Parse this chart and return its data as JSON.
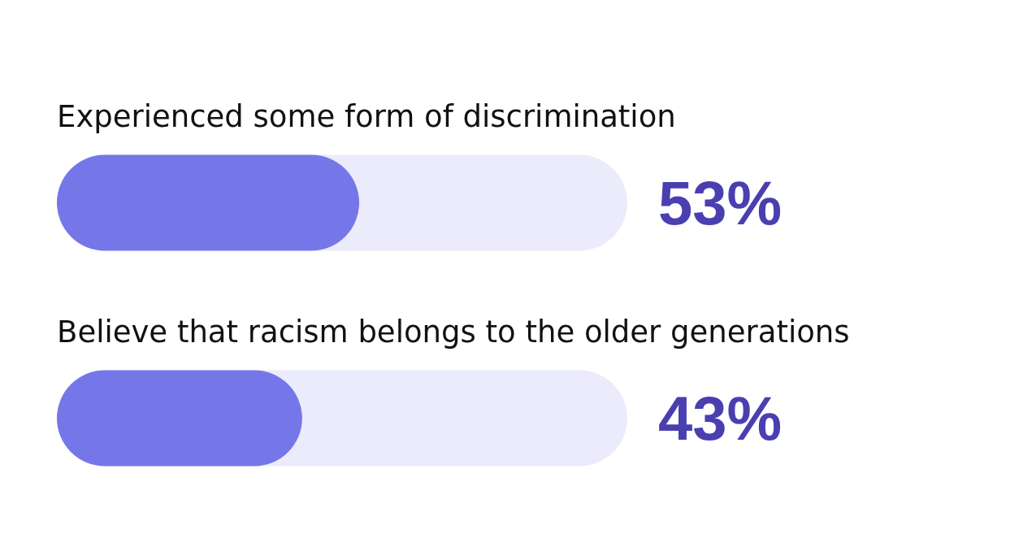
{
  "chart_data": {
    "type": "bar",
    "orientation": "horizontal",
    "categories": [
      "Experienced some form of discrimination",
      "Believe that racism belongs to the older generations"
    ],
    "values": [
      53,
      43
    ],
    "color": "#7577e8",
    "value_labels": [
      "53%",
      "43%"
    ],
    "xlim": [
      0,
      100
    ],
    "tick_labels": "y"
  }
}
